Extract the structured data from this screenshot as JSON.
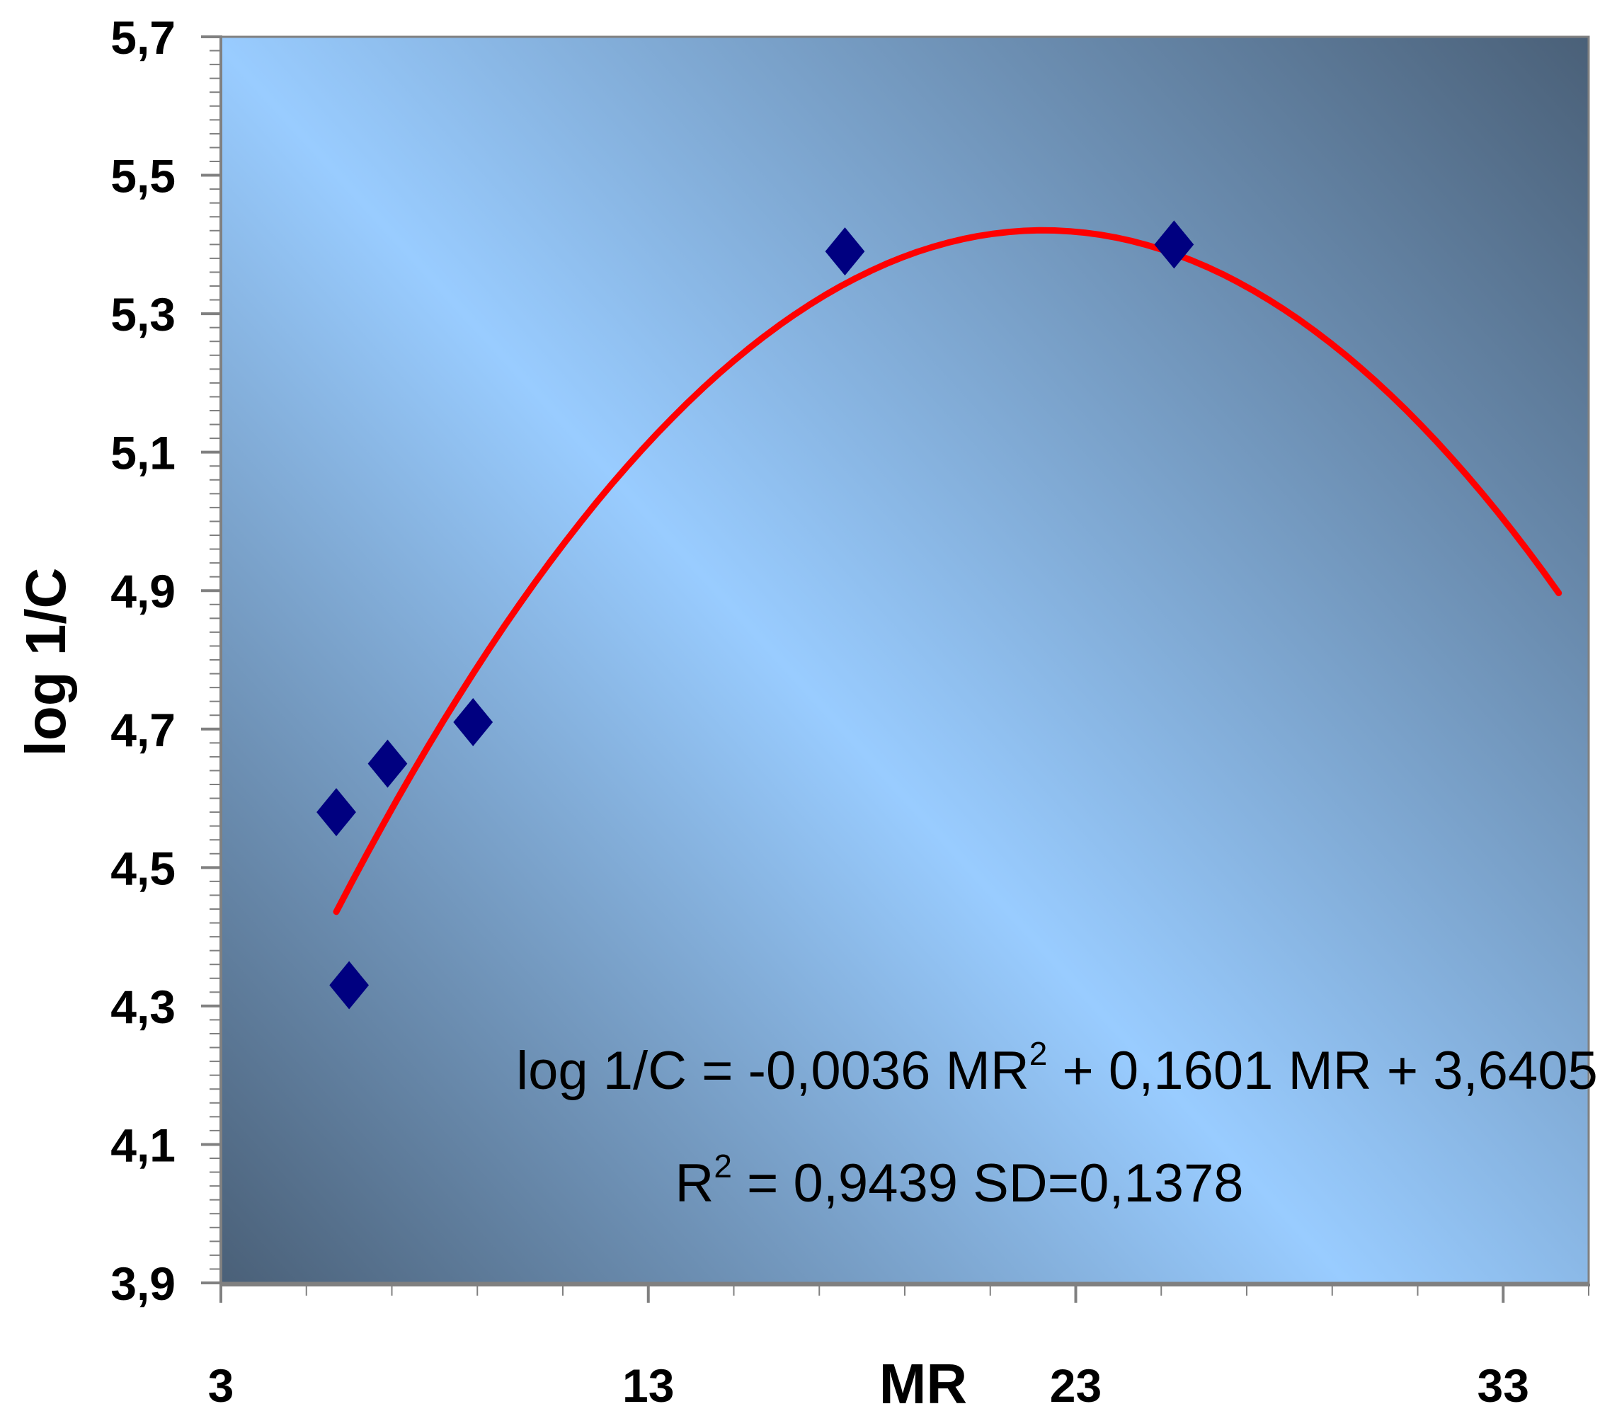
{
  "chart_data": {
    "type": "scatter",
    "xlabel": "MR",
    "ylabel": "log 1/C",
    "xlim": [
      3,
      35
    ],
    "ylim": [
      3.9,
      5.7
    ],
    "x_ticks": [
      "3",
      "13",
      "23",
      "33"
    ],
    "x_tick_values": [
      3,
      13,
      23,
      33
    ],
    "y_ticks": [
      "5,7",
      "5,5",
      "5,3",
      "5,1",
      "4,9",
      "4,7",
      "4,5",
      "4,3",
      "4,1",
      "3,9"
    ],
    "y_tick_values": [
      5.7,
      5.5,
      5.3,
      5.1,
      4.9,
      4.7,
      4.5,
      4.3,
      4.1,
      3.9
    ],
    "points": [
      {
        "x": 5.7,
        "y": 4.58
      },
      {
        "x": 6.0,
        "y": 4.33
      },
      {
        "x": 6.9,
        "y": 4.65
      },
      {
        "x": 8.9,
        "y": 4.71
      },
      {
        "x": 17.6,
        "y": 5.39
      },
      {
        "x": 25.3,
        "y": 5.4
      }
    ],
    "fit": {
      "a": -0.0036,
      "b": 0.1601,
      "c": 3.6405,
      "x_from": 5.7,
      "x_to": 34.3
    },
    "equation": {
      "line1_a": "log 1/C = -0,0036 MR",
      "line1_sup": "2",
      "line1_b": " + 0,1601 MR + 3,6405",
      "line2_a": "R",
      "line2_sup": "2",
      "line2_b": " = 0,9439 SD=0,1378"
    },
    "colors": {
      "marker": "#000080",
      "fit_line": "#ff0000",
      "plot_bg_light": "#99ccff",
      "plot_bg_dark": "#4a6078"
    },
    "grid": false,
    "legend": "none"
  }
}
